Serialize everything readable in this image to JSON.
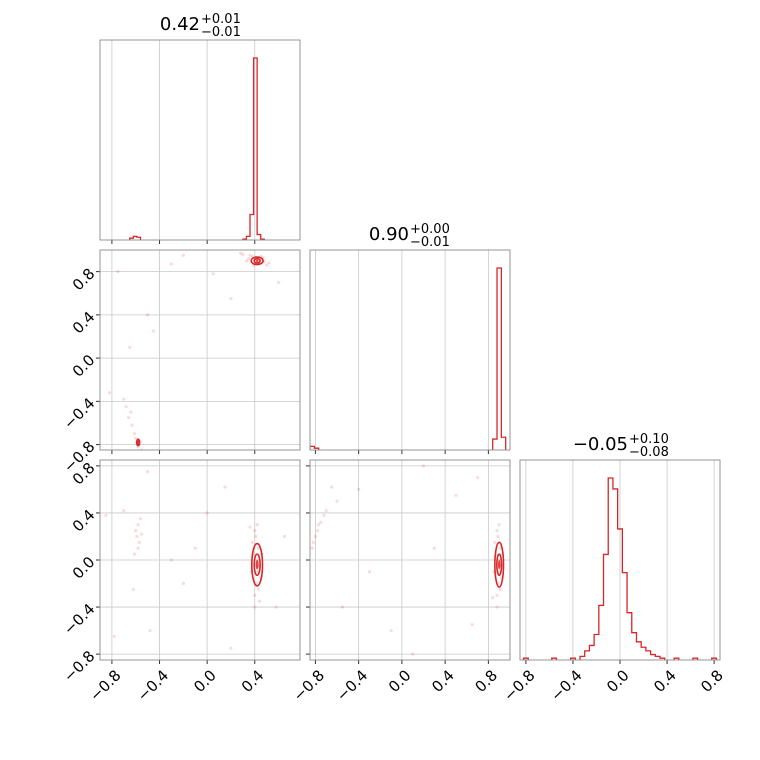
{
  "chart_data": {
    "type": "corner",
    "grid": true,
    "color": "#d62728",
    "parameters": [
      {
        "index": 0,
        "median": "0.42",
        "plus": "+0.01",
        "minus": "−0.01"
      },
      {
        "index": 1,
        "median": "0.90",
        "plus": "+0.00",
        "minus": "−0.01"
      },
      {
        "index": 2,
        "median": "−0.05",
        "plus": "+0.10",
        "minus": "−0.08"
      }
    ],
    "axis_ranges": {
      "p0": [
        -0.9,
        0.78
      ],
      "p1": [
        -0.85,
        1.0
      ],
      "p2": [
        -0.85,
        0.85
      ]
    },
    "ticks": {
      "values": [
        -0.8,
        -0.4,
        0.0,
        0.4,
        0.8
      ],
      "labels": [
        "−0.8",
        "−0.4",
        "0.0",
        "0.4",
        "0.8"
      ]
    },
    "histograms": [
      {
        "param": 0,
        "ymax": 1.0,
        "bins": [
          {
            "x0": -0.65,
            "x1": -0.62,
            "h": 0.01
          },
          {
            "x0": -0.62,
            "x1": -0.59,
            "h": 0.02
          },
          {
            "x0": -0.59,
            "x1": -0.56,
            "h": 0.015
          },
          {
            "x0": 0.3,
            "x1": 0.33,
            "h": 0.005
          },
          {
            "x0": 0.33,
            "x1": 0.36,
            "h": 0.02
          },
          {
            "x0": 0.36,
            "x1": 0.39,
            "h": 0.14
          },
          {
            "x0": 0.39,
            "x1": 0.42,
            "h": 1.0
          },
          {
            "x0": 0.42,
            "x1": 0.45,
            "h": 0.03
          },
          {
            "x0": 0.45,
            "x1": 0.48,
            "h": 0.005
          }
        ]
      },
      {
        "param": 1,
        "ymax": 1.0,
        "bins": [
          {
            "x0": -0.85,
            "x1": -0.81,
            "h": 0.02
          },
          {
            "x0": -0.81,
            "x1": -0.77,
            "h": 0.01
          },
          {
            "x0": 0.84,
            "x1": 0.88,
            "h": 0.06
          },
          {
            "x0": 0.88,
            "x1": 0.92,
            "h": 1.0
          },
          {
            "x0": 0.92,
            "x1": 0.96,
            "h": 0.07
          }
        ]
      },
      {
        "param": 2,
        "ymax": 1.0,
        "bins": [
          {
            "x0": -0.82,
            "x1": -0.78,
            "h": 0.01
          },
          {
            "x0": -0.58,
            "x1": -0.54,
            "h": 0.01
          },
          {
            "x0": -0.42,
            "x1": -0.38,
            "h": 0.01
          },
          {
            "x0": -0.34,
            "x1": -0.3,
            "h": 0.02
          },
          {
            "x0": -0.3,
            "x1": -0.26,
            "h": 0.05
          },
          {
            "x0": -0.26,
            "x1": -0.22,
            "h": 0.08
          },
          {
            "x0": -0.22,
            "x1": -0.18,
            "h": 0.14
          },
          {
            "x0": -0.18,
            "x1": -0.14,
            "h": 0.3
          },
          {
            "x0": -0.14,
            "x1": -0.1,
            "h": 0.58
          },
          {
            "x0": -0.1,
            "x1": -0.06,
            "h": 1.0
          },
          {
            "x0": -0.06,
            "x1": -0.02,
            "h": 0.94
          },
          {
            "x0": -0.02,
            "x1": 0.02,
            "h": 0.72
          },
          {
            "x0": 0.02,
            "x1": 0.06,
            "h": 0.48
          },
          {
            "x0": 0.06,
            "x1": 0.1,
            "h": 0.26
          },
          {
            "x0": 0.1,
            "x1": 0.14,
            "h": 0.15
          },
          {
            "x0": 0.14,
            "x1": 0.18,
            "h": 0.1
          },
          {
            "x0": 0.18,
            "x1": 0.22,
            "h": 0.07
          },
          {
            "x0": 0.22,
            "x1": 0.26,
            "h": 0.05
          },
          {
            "x0": 0.26,
            "x1": 0.3,
            "h": 0.03
          },
          {
            "x0": 0.3,
            "x1": 0.34,
            "h": 0.02
          },
          {
            "x0": 0.34,
            "x1": 0.38,
            "h": 0.01
          },
          {
            "x0": 0.46,
            "x1": 0.5,
            "h": 0.01
          },
          {
            "x0": 0.62,
            "x1": 0.66,
            "h": 0.01
          },
          {
            "x0": 0.78,
            "x1": 0.82,
            "h": 0.01
          }
        ]
      }
    ],
    "scatter": [
      {
        "x_param": 0,
        "y_param": 1,
        "points": [
          [
            0.38,
            0.94
          ],
          [
            0.4,
            0.92
          ],
          [
            0.42,
            0.9
          ],
          [
            0.44,
            0.88
          ],
          [
            0.46,
            0.91
          ],
          [
            0.36,
            0.95
          ],
          [
            0.48,
            0.89
          ],
          [
            0.41,
            0.93
          ],
          [
            0.43,
            0.87
          ],
          [
            0.35,
            0.92
          ],
          [
            0.3,
            0.96
          ],
          [
            0.5,
            0.86
          ],
          [
            0.33,
            0.9
          ],
          [
            0.45,
            0.94
          ],
          [
            0.39,
            0.86
          ],
          [
            0.47,
            0.93
          ],
          [
            0.28,
            0.97
          ],
          [
            0.52,
            0.88
          ],
          [
            -0.58,
            -0.76
          ],
          [
            -0.59,
            -0.78
          ],
          [
            -0.57,
            -0.8
          ],
          [
            -0.6,
            -0.74
          ],
          [
            -0.56,
            -0.77
          ],
          [
            -0.58,
            -0.82
          ],
          [
            -0.61,
            -0.7
          ],
          [
            -0.63,
            -0.62
          ],
          [
            -0.66,
            -0.55
          ],
          [
            -0.68,
            -0.45
          ],
          [
            -0.7,
            -0.38
          ],
          [
            -0.64,
            -0.5
          ],
          [
            -0.55,
            -0.85
          ],
          [
            -0.75,
            0.8
          ],
          [
            -0.3,
            0.87
          ],
          [
            0.05,
            0.78
          ],
          [
            -0.2,
            0.95
          ],
          [
            -0.45,
            0.25
          ],
          [
            -0.5,
            0.4
          ],
          [
            -0.82,
            -0.32
          ],
          [
            0.2,
            0.55
          ],
          [
            -0.65,
            0.1
          ],
          [
            0.6,
            0.7
          ]
        ],
        "contours": [
          {
            "cx": 0.42,
            "cy": 0.9,
            "rx": 0.025,
            "ry": 0.02
          },
          {
            "cx": 0.42,
            "cy": 0.9,
            "rx": 0.05,
            "ry": 0.035
          },
          {
            "cx": -0.58,
            "cy": -0.78,
            "rx": 0.012,
            "ry": 0.03
          }
        ],
        "cores": [
          {
            "cx": 0.42,
            "cy": 0.9,
            "rx": 0.012,
            "ry": 0.01
          },
          {
            "cx": -0.58,
            "cy": -0.78,
            "rx": 0.008,
            "ry": 0.02
          }
        ]
      },
      {
        "x_param": 0,
        "y_param": 2,
        "points": [
          [
            0.4,
            -0.3
          ],
          [
            0.41,
            -0.2
          ],
          [
            0.42,
            -0.1
          ],
          [
            0.42,
            0.0
          ],
          [
            0.43,
            0.1
          ],
          [
            0.41,
            0.2
          ],
          [
            0.4,
            0.25
          ],
          [
            0.43,
            -0.25
          ],
          [
            0.39,
            0.05
          ],
          [
            0.44,
            -0.05
          ],
          [
            0.38,
            0.15
          ],
          [
            0.45,
            -0.15
          ],
          [
            0.4,
            -0.4
          ],
          [
            0.42,
            0.3
          ],
          [
            0.37,
            -0.1
          ],
          [
            0.46,
            0.05
          ],
          [
            0.36,
            0.28
          ],
          [
            0.44,
            -0.35
          ],
          [
            -0.58,
            0.3
          ],
          [
            -0.59,
            0.2
          ],
          [
            -0.57,
            0.15
          ],
          [
            -0.6,
            0.25
          ],
          [
            -0.58,
            0.1
          ],
          [
            -0.56,
            0.35
          ],
          [
            -0.61,
            0.05
          ],
          [
            -0.55,
            0.22
          ],
          [
            -0.7,
            0.42
          ],
          [
            -0.62,
            -0.25
          ],
          [
            -0.5,
            0.75
          ],
          [
            -0.78,
            -0.65
          ],
          [
            -0.2,
            -0.2
          ],
          [
            0.0,
            0.4
          ],
          [
            -0.3,
            0.0
          ],
          [
            0.15,
            0.62
          ],
          [
            0.58,
            -0.4
          ],
          [
            -0.48,
            -0.6
          ],
          [
            -0.85,
            0.38
          ],
          [
            0.2,
            -0.75
          ],
          [
            -0.1,
            0.1
          ],
          [
            0.65,
            0.2
          ]
        ],
        "contours": [
          {
            "cx": 0.42,
            "cy": -0.04,
            "rx": 0.025,
            "ry": 0.09
          },
          {
            "cx": 0.42,
            "cy": -0.04,
            "rx": 0.045,
            "ry": 0.18
          }
        ],
        "cores": [
          {
            "cx": 0.42,
            "cy": -0.04,
            "rx": 0.013,
            "ry": 0.04
          }
        ]
      },
      {
        "x_param": 1,
        "y_param": 2,
        "points": [
          [
            0.88,
            -0.3
          ],
          [
            0.89,
            -0.2
          ],
          [
            0.9,
            -0.1
          ],
          [
            0.9,
            0.0
          ],
          [
            0.91,
            0.1
          ],
          [
            0.89,
            0.2
          ],
          [
            0.88,
            0.25
          ],
          [
            0.91,
            -0.25
          ],
          [
            0.87,
            0.05
          ],
          [
            0.92,
            -0.05
          ],
          [
            0.86,
            0.15
          ],
          [
            0.92,
            -0.15
          ],
          [
            0.88,
            -0.4
          ],
          [
            0.9,
            0.3
          ],
          [
            0.85,
            -0.1
          ],
          [
            0.93,
            0.05
          ],
          [
            0.84,
            -0.32
          ],
          [
            -0.8,
            0.2
          ],
          [
            -0.78,
            0.25
          ],
          [
            -0.82,
            0.15
          ],
          [
            -0.77,
            0.3
          ],
          [
            -0.83,
            0.1
          ],
          [
            -0.75,
            0.32
          ],
          [
            -0.72,
            0.38
          ],
          [
            -0.7,
            0.42
          ],
          [
            -0.6,
            0.5
          ],
          [
            -0.4,
            0.6
          ],
          [
            -0.1,
            -0.6
          ],
          [
            0.2,
            0.8
          ],
          [
            0.7,
            0.7
          ],
          [
            -0.55,
            -0.4
          ],
          [
            0.1,
            -0.8
          ],
          [
            0.5,
            0.55
          ],
          [
            -0.3,
            -0.1
          ],
          [
            0.3,
            0.1
          ],
          [
            0.65,
            -0.55
          ],
          [
            -0.65,
            0.62
          ]
        ],
        "contours": [
          {
            "cx": 0.9,
            "cy": -0.04,
            "rx": 0.022,
            "ry": 0.09
          },
          {
            "cx": 0.9,
            "cy": -0.04,
            "rx": 0.04,
            "ry": 0.19
          }
        ],
        "cores": [
          {
            "cx": 0.9,
            "cy": -0.04,
            "rx": 0.012,
            "ry": 0.04
          }
        ]
      }
    ]
  }
}
